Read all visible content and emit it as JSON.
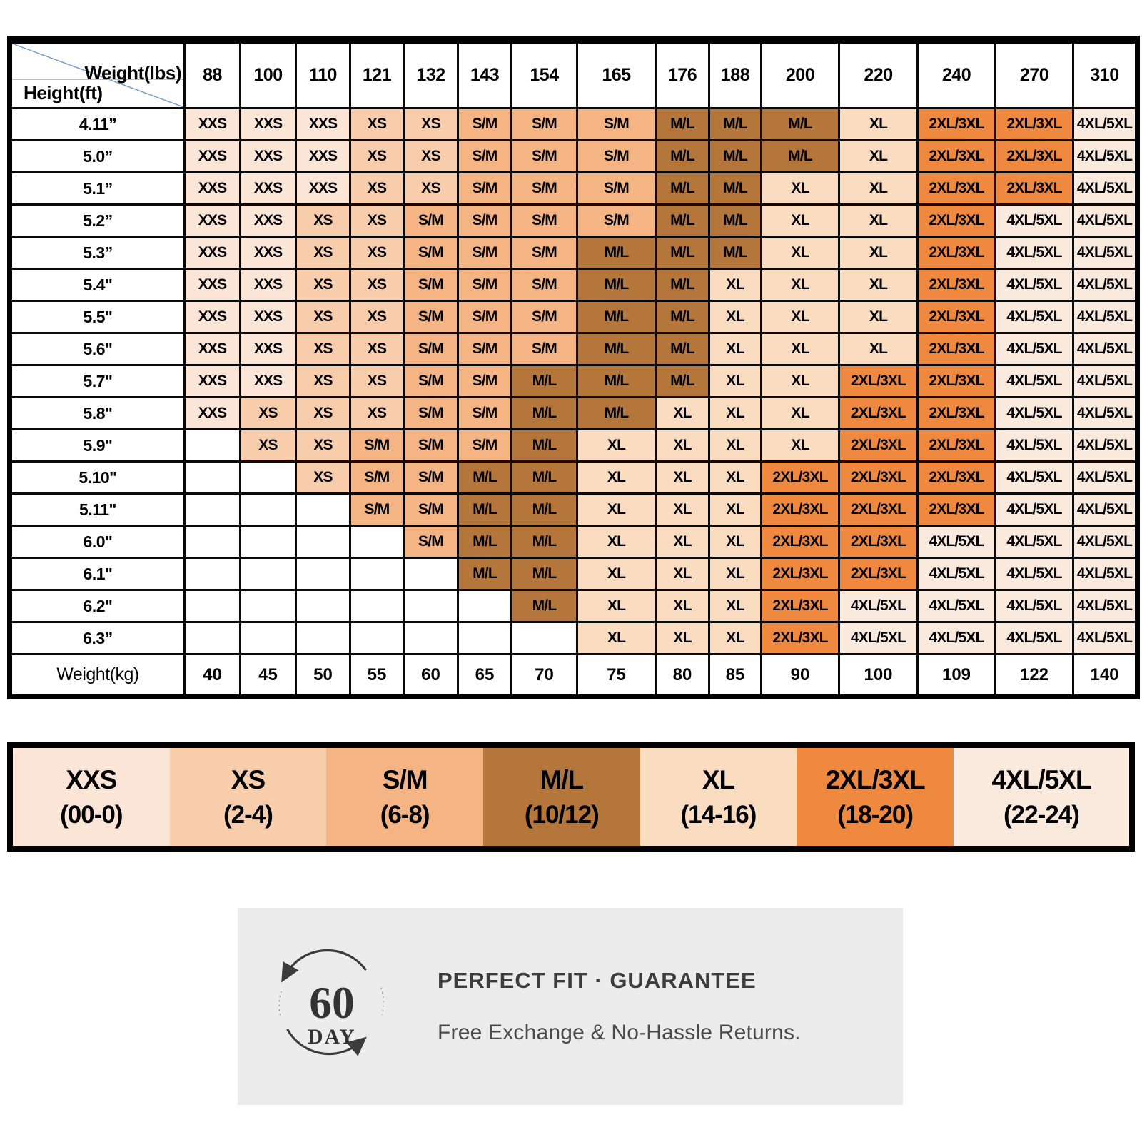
{
  "table": {
    "corner": {
      "weight_label": "Weight(lbs)",
      "height_label": "Height(ft)"
    },
    "weights_lbs": [
      "88",
      "100",
      "110",
      "121",
      "132",
      "143",
      "154",
      "165",
      "176",
      "188",
      "200",
      "220",
      "240",
      "270",
      "310"
    ],
    "rows": [
      {
        "height": "4.11”",
        "cells": [
          "XXS",
          "XXS",
          "XXS",
          "XS",
          "XS",
          "S/M",
          "S/M",
          "S/M",
          "M/L",
          "M/L",
          "M/L",
          "XL",
          "2XL/3XL",
          "2XL/3XL",
          "4XL/5XL"
        ]
      },
      {
        "height": "5.0”",
        "cells": [
          "XXS",
          "XXS",
          "XXS",
          "XS",
          "XS",
          "S/M",
          "S/M",
          "S/M",
          "M/L",
          "M/L",
          "M/L",
          "XL",
          "2XL/3XL",
          "2XL/3XL",
          "4XL/5XL"
        ]
      },
      {
        "height": "5.1”",
        "cells": [
          "XXS",
          "XXS",
          "XXS",
          "XS",
          "XS",
          "S/M",
          "S/M",
          "S/M",
          "M/L",
          "M/L",
          "XL",
          "XL",
          "2XL/3XL",
          "2XL/3XL",
          "4XL/5XL"
        ]
      },
      {
        "height": "5.2”",
        "cells": [
          "XXS",
          "XXS",
          "XS",
          "XS",
          "S/M",
          "S/M",
          "S/M",
          "S/M",
          "M/L",
          "M/L",
          "XL",
          "XL",
          "2XL/3XL",
          "4XL/5XL",
          "4XL/5XL"
        ]
      },
      {
        "height": "5.3”",
        "cells": [
          "XXS",
          "XXS",
          "XS",
          "XS",
          "S/M",
          "S/M",
          "S/M",
          "M/L",
          "M/L",
          "M/L",
          "XL",
          "XL",
          "2XL/3XL",
          "4XL/5XL",
          "4XL/5XL"
        ]
      },
      {
        "height": "5.4\"",
        "cells": [
          "XXS",
          "XXS",
          "XS",
          "XS",
          "S/M",
          "S/M",
          "S/M",
          "M/L",
          "M/L",
          "XL",
          "XL",
          "XL",
          "2XL/3XL",
          "4XL/5XL",
          "4XL/5XL"
        ]
      },
      {
        "height": "5.5\"",
        "cells": [
          "XXS",
          "XXS",
          "XS",
          "XS",
          "S/M",
          "S/M",
          "S/M",
          "M/L",
          "M/L",
          "XL",
          "XL",
          "XL",
          "2XL/3XL",
          "4XL/5XL",
          "4XL/5XL"
        ]
      },
      {
        "height": "5.6\"",
        "cells": [
          "XXS",
          "XXS",
          "XS",
          "XS",
          "S/M",
          "S/M",
          "S/M",
          "M/L",
          "M/L",
          "XL",
          "XL",
          "XL",
          "2XL/3XL",
          "4XL/5XL",
          "4XL/5XL"
        ]
      },
      {
        "height": "5.7\"",
        "cells": [
          "XXS",
          "XXS",
          "XS",
          "XS",
          "S/M",
          "S/M",
          "M/L",
          "M/L",
          "M/L",
          "XL",
          "XL",
          "2XL/3XL",
          "2XL/3XL",
          "4XL/5XL",
          "4XL/5XL"
        ]
      },
      {
        "height": "5.8\"",
        "cells": [
          "XXS",
          "XS",
          "XS",
          "XS",
          "S/M",
          "S/M",
          "M/L",
          "M/L",
          "XL",
          "XL",
          "XL",
          "2XL/3XL",
          "2XL/3XL",
          "4XL/5XL",
          "4XL/5XL"
        ]
      },
      {
        "height": "5.9\"",
        "cells": [
          "",
          "XS",
          "XS",
          "S/M",
          "S/M",
          "S/M",
          "M/L",
          "XL",
          "XL",
          "XL",
          "XL",
          "2XL/3XL",
          "2XL/3XL",
          "4XL/5XL",
          "4XL/5XL"
        ]
      },
      {
        "height": "5.10\"",
        "cells": [
          "",
          "",
          "XS",
          "S/M",
          "S/M",
          "M/L",
          "M/L",
          "XL",
          "XL",
          "XL",
          "2XL/3XL",
          "2XL/3XL",
          "2XL/3XL",
          "4XL/5XL",
          "4XL/5XL"
        ]
      },
      {
        "height": "5.11\"",
        "cells": [
          "",
          "",
          "",
          "S/M",
          "S/M",
          "M/L",
          "M/L",
          "XL",
          "XL",
          "XL",
          "2XL/3XL",
          "2XL/3XL",
          "2XL/3XL",
          "4XL/5XL",
          "4XL/5XL"
        ]
      },
      {
        "height": "6.0\"",
        "cells": [
          "",
          "",
          "",
          "",
          "S/M",
          "M/L",
          "M/L",
          "XL",
          "XL",
          "XL",
          "2XL/3XL",
          "2XL/3XL",
          "4XL/5XL",
          "4XL/5XL",
          "4XL/5XL"
        ]
      },
      {
        "height": "6.1\"",
        "cells": [
          "",
          "",
          "",
          "",
          "",
          "M/L",
          "M/L",
          "XL",
          "XL",
          "XL",
          "2XL/3XL",
          "2XL/3XL",
          "4XL/5XL",
          "4XL/5XL",
          "4XL/5XL"
        ]
      },
      {
        "height": "6.2\"",
        "cells": [
          "",
          "",
          "",
          "",
          "",
          "",
          "M/L",
          "XL",
          "XL",
          "XL",
          "2XL/3XL",
          "4XL/5XL",
          "4XL/5XL",
          "4XL/5XL",
          "4XL/5XL"
        ]
      },
      {
        "height": "6.3”",
        "cells": [
          "",
          "",
          "",
          "",
          "",
          "",
          "",
          "XL",
          "XL",
          "XL",
          "2XL/3XL",
          "4XL/5XL",
          "4XL/5XL",
          "4XL/5XL",
          "4XL/5XL"
        ]
      }
    ],
    "weight_kg": {
      "label": "Weight(kg)",
      "values": [
        "40",
        "45",
        "50",
        "55",
        "60",
        "65",
        "70",
        "75",
        "80",
        "85",
        "90",
        "100",
        "109",
        "122",
        "140"
      ]
    }
  },
  "size_colors": {
    "XXS": "#FBE5D7",
    "XS": "#F8CDAC",
    "S/M": "#F4B483",
    "M/L": "#B5763B",
    "XL": "#FADCC1",
    "2XL/3XL": "#EF8940",
    "4XL/5XL": "#FAE9DD",
    "empty": "#FFFFFF"
  },
  "legend": {
    "items": [
      {
        "size": "XXS",
        "range": "(00-0)",
        "color": "#FBE5D7"
      },
      {
        "size": "XS",
        "range": "(2-4)",
        "color": "#F8CDAC"
      },
      {
        "size": "S/M",
        "range": "(6-8)",
        "color": "#F4B483"
      },
      {
        "size": "M/L",
        "range": "(10/12)",
        "color": "#B5763B"
      },
      {
        "size": "XL",
        "range": "(14-16)",
        "color": "#FADCC1"
      },
      {
        "size": "2XL/3XL",
        "range": "(18-20)",
        "color": "#EF8940"
      },
      {
        "size": "4XL/5XL",
        "range": "(22-24)",
        "color": "#FAE9DD"
      }
    ]
  },
  "guarantee": {
    "badge_value": "60",
    "badge_unit": "DAY",
    "title": "PERFECT FIT · GUARANTEE",
    "subtitle": "Free Exchange & No-Hassle Returns.",
    "background": "#ECECEC",
    "ink": "#3C3C3C"
  },
  "chart_data": {
    "type": "table",
    "title": "Size chart by height and weight",
    "columns_weight_lbs": [
      88,
      100,
      110,
      121,
      132,
      143,
      154,
      165,
      176,
      188,
      200,
      220,
      240,
      270,
      310
    ],
    "columns_weight_kg": [
      40,
      45,
      50,
      55,
      60,
      65,
      70,
      75,
      80,
      85,
      90,
      100,
      109,
      122,
      140
    ],
    "rows_height_ft": [
      "4.11",
      "5.0",
      "5.1",
      "5.2",
      "5.3",
      "5.4",
      "5.5",
      "5.6",
      "5.7",
      "5.8",
      "5.9",
      "5.10",
      "5.11",
      "6.0",
      "6.1",
      "6.2",
      "6.3"
    ],
    "matrix": [
      [
        "XXS",
        "XXS",
        "XXS",
        "XS",
        "XS",
        "S/M",
        "S/M",
        "S/M",
        "M/L",
        "M/L",
        "M/L",
        "XL",
        "2XL/3XL",
        "2XL/3XL",
        "4XL/5XL"
      ],
      [
        "XXS",
        "XXS",
        "XXS",
        "XS",
        "XS",
        "S/M",
        "S/M",
        "S/M",
        "M/L",
        "M/L",
        "M/L",
        "XL",
        "2XL/3XL",
        "2XL/3XL",
        "4XL/5XL"
      ],
      [
        "XXS",
        "XXS",
        "XXS",
        "XS",
        "XS",
        "S/M",
        "S/M",
        "S/M",
        "M/L",
        "M/L",
        "XL",
        "XL",
        "2XL/3XL",
        "2XL/3XL",
        "4XL/5XL"
      ],
      [
        "XXS",
        "XXS",
        "XS",
        "XS",
        "S/M",
        "S/M",
        "S/M",
        "S/M",
        "M/L",
        "M/L",
        "XL",
        "XL",
        "2XL/3XL",
        "4XL/5XL",
        "4XL/5XL"
      ],
      [
        "XXS",
        "XXS",
        "XS",
        "XS",
        "S/M",
        "S/M",
        "S/M",
        "M/L",
        "M/L",
        "M/L",
        "XL",
        "XL",
        "2XL/3XL",
        "4XL/5XL",
        "4XL/5XL"
      ],
      [
        "XXS",
        "XXS",
        "XS",
        "XS",
        "S/M",
        "S/M",
        "S/M",
        "M/L",
        "M/L",
        "XL",
        "XL",
        "XL",
        "2XL/3XL",
        "4XL/5XL",
        "4XL/5XL"
      ],
      [
        "XXS",
        "XXS",
        "XS",
        "XS",
        "S/M",
        "S/M",
        "S/M",
        "M/L",
        "M/L",
        "XL",
        "XL",
        "XL",
        "2XL/3XL",
        "4XL/5XL",
        "4XL/5XL"
      ],
      [
        "XXS",
        "XXS",
        "XS",
        "XS",
        "S/M",
        "S/M",
        "S/M",
        "M/L",
        "M/L",
        "XL",
        "XL",
        "XL",
        "2XL/3XL",
        "4XL/5XL",
        "4XL/5XL"
      ],
      [
        "XXS",
        "XXS",
        "XS",
        "XS",
        "S/M",
        "S/M",
        "M/L",
        "M/L",
        "M/L",
        "XL",
        "XL",
        "2XL/3XL",
        "2XL/3XL",
        "4XL/5XL",
        "4XL/5XL"
      ],
      [
        "XXS",
        "XS",
        "XS",
        "XS",
        "S/M",
        "S/M",
        "M/L",
        "M/L",
        "XL",
        "XL",
        "XL",
        "2XL/3XL",
        "2XL/3XL",
        "4XL/5XL",
        "4XL/5XL"
      ],
      [
        "",
        "XS",
        "XS",
        "S/M",
        "S/M",
        "S/M",
        "M/L",
        "XL",
        "XL",
        "XL",
        "XL",
        "2XL/3XL",
        "2XL/3XL",
        "4XL/5XL",
        "4XL/5XL"
      ],
      [
        "",
        "",
        "XS",
        "S/M",
        "S/M",
        "M/L",
        "M/L",
        "XL",
        "XL",
        "XL",
        "2XL/3XL",
        "2XL/3XL",
        "2XL/3XL",
        "4XL/5XL",
        "4XL/5XL"
      ],
      [
        "",
        "",
        "",
        "S/M",
        "S/M",
        "M/L",
        "M/L",
        "XL",
        "XL",
        "XL",
        "2XL/3XL",
        "2XL/3XL",
        "2XL/3XL",
        "4XL/5XL",
        "4XL/5XL"
      ],
      [
        "",
        "",
        "",
        "",
        "S/M",
        "M/L",
        "M/L",
        "XL",
        "XL",
        "XL",
        "2XL/3XL",
        "2XL/3XL",
        "4XL/5XL",
        "4XL/5XL",
        "4XL/5XL"
      ],
      [
        "",
        "",
        "",
        "",
        "",
        "M/L",
        "M/L",
        "XL",
        "XL",
        "XL",
        "2XL/3XL",
        "2XL/3XL",
        "4XL/5XL",
        "4XL/5XL",
        "4XL/5XL"
      ],
      [
        "",
        "",
        "",
        "",
        "",
        "",
        "M/L",
        "XL",
        "XL",
        "XL",
        "2XL/3XL",
        "4XL/5XL",
        "4XL/5XL",
        "4XL/5XL",
        "4XL/5XL"
      ],
      [
        "",
        "",
        "",
        "",
        "",
        "",
        "",
        "XL",
        "XL",
        "XL",
        "2XL/3XL",
        "4XL/5XL",
        "4XL/5XL",
        "4XL/5XL",
        "4XL/5XL"
      ]
    ],
    "legend": [
      "XXS (00-0)",
      "XS (2-4)",
      "S/M (6-8)",
      "M/L (10/12)",
      "XL (14-16)",
      "2XL/3XL (18-20)",
      "4XL/5XL (22-24)"
    ]
  }
}
